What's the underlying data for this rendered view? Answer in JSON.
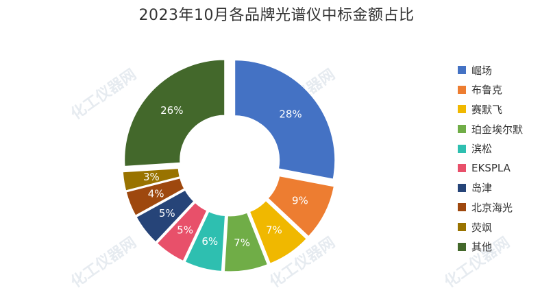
{
  "title": "2023年10月各品牌光谱仪中标金额占比",
  "watermark_text": "化工仪器网",
  "chart_data": {
    "type": "pie",
    "variant": "donut",
    "categories": [
      "崛场",
      "布鲁克",
      "赛默飞",
      "珀金埃尔默",
      "滨松",
      "EKSPLA",
      "岛津",
      "北京海光",
      "荧飒",
      "其他"
    ],
    "values": [
      28,
      9,
      7,
      7,
      6,
      5,
      5,
      4,
      3,
      26
    ],
    "labels": [
      "28%",
      "9%",
      "7%",
      "7%",
      "6%",
      "5%",
      "5%",
      "4%",
      "3%",
      "26%"
    ],
    "colors": [
      "#4472c4",
      "#ed7d31",
      "#f0b800",
      "#70ad47",
      "#2ebfb0",
      "#e8506a",
      "#264478",
      "#9e480e",
      "#997300",
      "#43682b"
    ],
    "legend_position": "right",
    "exploded": true
  }
}
